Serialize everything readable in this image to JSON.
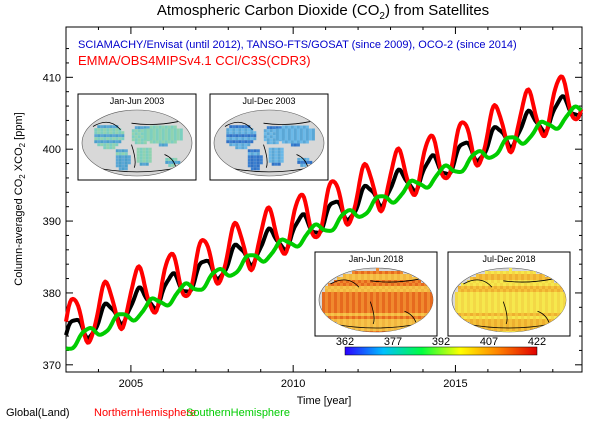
{
  "chart_data": {
    "type": "line",
    "title_prefix": "Atmospheric Carbon Dioxide (CO",
    "title_sub": "2",
    "title_suffix": ") from Satellites",
    "subtitle": "SCIAMACHY/Envisat (until 2012), TANSO-FTS/GOSAT (since 2009), OCO-2 (since 2014)",
    "product": "EMMA/OBS4MIPSv4.1 CCI/C3S(CDR3)",
    "xlabel": "Time [year]",
    "ylabel": {
      "t1": "Column-averaged CO",
      "s1": "2",
      "t2": " XCO",
      "s2": "2",
      "t3": " [ppm]"
    },
    "xlim": [
      2003.0,
      2018.9
    ],
    "ylim": [
      369,
      417
    ],
    "x_ticks": [
      "2005",
      "2010",
      "2015"
    ],
    "x_tick_values": [
      2005,
      2010,
      2015
    ],
    "y_ticks": [
      "370",
      "380",
      "390",
      "400",
      "410"
    ],
    "y_tick_values": [
      370,
      380,
      390,
      400,
      410
    ],
    "grid": false,
    "legend_position": "bottom-left",
    "series": [
      {
        "name": "Global(Land)",
        "color": "#000000",
        "baseline": 374.1,
        "trend_per_year": 2.05,
        "amplitude": 1.8,
        "phase": 0.25,
        "x_start": 2003.0,
        "x_end": 2018.9
      },
      {
        "name": "NorthernHemisphere",
        "color": "#ff0000",
        "baseline": 375.3,
        "trend_per_year": 2.05,
        "amplitude": 3.6,
        "phase": 0.22,
        "x_start": 2003.0,
        "x_end": 2018.9
      },
      {
        "name": "SouthernHemisphere",
        "color": "#00cc00",
        "baseline": 372.8,
        "trend_per_year": 2.05,
        "amplitude": 0.9,
        "phase": 0.65,
        "x_start": 2003.0,
        "x_end": 2018.9
      }
    ],
    "insets": [
      {
        "label": "Jan-Jun 2003",
        "palette": "cool"
      },
      {
        "label": "Jul-Dec 2003",
        "palette": "cool2"
      },
      {
        "label": "Jan-Jun 2018",
        "palette": "warm"
      },
      {
        "label": "Jul-Dec 2018",
        "palette": "warm2"
      }
    ],
    "colorbar": {
      "ticks": [
        "362",
        "377",
        "392",
        "407",
        "422"
      ],
      "colors": [
        "#2b00ff",
        "#00c0ff",
        "#00ff40",
        "#ffff00",
        "#ff8000",
        "#e00000"
      ]
    }
  }
}
